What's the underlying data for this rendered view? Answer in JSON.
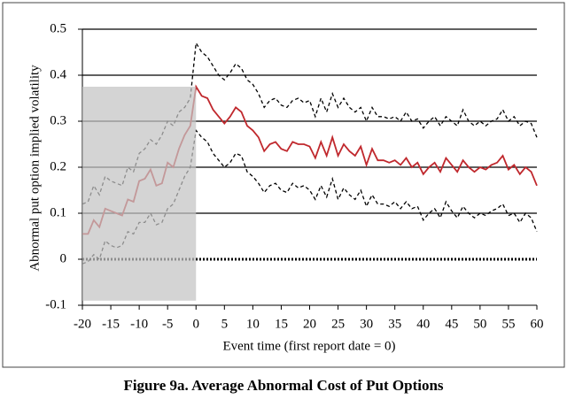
{
  "chart_data": {
    "type": "line",
    "caption": "Figure 9a. Average Abnormal Cost of Put Options",
    "xlabel": "Event time (first report date = 0)",
    "ylabel": "Abnormal put option implied volatility",
    "x": [
      -20,
      -19,
      -18,
      -17,
      -16,
      -15,
      -14,
      -13,
      -12,
      -11,
      -10,
      -9,
      -8,
      -7,
      -6,
      -5,
      -4,
      -3,
      -2,
      -1,
      0,
      1,
      2,
      3,
      4,
      5,
      6,
      7,
      8,
      9,
      10,
      11,
      12,
      13,
      14,
      15,
      16,
      17,
      18,
      19,
      20,
      21,
      22,
      23,
      24,
      25,
      26,
      27,
      28,
      29,
      30,
      31,
      32,
      33,
      34,
      35,
      36,
      37,
      38,
      39,
      40,
      41,
      42,
      43,
      44,
      45,
      46,
      47,
      48,
      49,
      50,
      51,
      52,
      53,
      54,
      55,
      56,
      57,
      58,
      59,
      60
    ],
    "series": [
      {
        "color": "#c0282d",
        "style": "solid",
        "values": [
          0.055,
          0.055,
          0.085,
          0.07,
          0.11,
          0.105,
          0.1,
          0.095,
          0.13,
          0.125,
          0.17,
          0.175,
          0.195,
          0.16,
          0.165,
          0.21,
          0.2,
          0.24,
          0.27,
          0.29,
          0.375,
          0.355,
          0.35,
          0.325,
          0.31,
          0.295,
          0.31,
          0.33,
          0.32,
          0.29,
          0.28,
          0.265,
          0.235,
          0.25,
          0.255,
          0.24,
          0.235,
          0.255,
          0.25,
          0.25,
          0.245,
          0.22,
          0.255,
          0.225,
          0.265,
          0.225,
          0.25,
          0.235,
          0.225,
          0.245,
          0.205,
          0.24,
          0.215,
          0.215,
          0.21,
          0.215,
          0.205,
          0.22,
          0.2,
          0.21,
          0.185,
          0.2,
          0.21,
          0.19,
          0.22,
          0.205,
          0.19,
          0.215,
          0.2,
          0.19,
          0.2,
          0.195,
          0.205,
          0.21,
          0.225,
          0.195,
          0.205,
          0.185,
          0.2,
          0.19,
          0.16
        ]
      },
      {
        "color": "#000000",
        "style": "dashed",
        "values": [
          0.12,
          0.125,
          0.16,
          0.14,
          0.18,
          0.17,
          0.165,
          0.16,
          0.2,
          0.19,
          0.23,
          0.24,
          0.26,
          0.25,
          0.27,
          0.3,
          0.29,
          0.32,
          0.33,
          0.35,
          0.47,
          0.45,
          0.44,
          0.42,
          0.4,
          0.39,
          0.405,
          0.425,
          0.415,
          0.39,
          0.38,
          0.36,
          0.33,
          0.345,
          0.35,
          0.335,
          0.33,
          0.345,
          0.35,
          0.34,
          0.345,
          0.31,
          0.35,
          0.32,
          0.36,
          0.33,
          0.35,
          0.33,
          0.32,
          0.33,
          0.3,
          0.33,
          0.31,
          0.31,
          0.305,
          0.31,
          0.3,
          0.32,
          0.3,
          0.305,
          0.285,
          0.3,
          0.31,
          0.29,
          0.31,
          0.3,
          0.29,
          0.325,
          0.3,
          0.29,
          0.3,
          0.29,
          0.3,
          0.305,
          0.325,
          0.3,
          0.31,
          0.29,
          0.3,
          0.295,
          0.265
        ]
      },
      {
        "color": "#000000",
        "style": "dashed",
        "values": [
          -0.01,
          -0.005,
          0.01,
          0.0,
          0.04,
          0.03,
          0.025,
          0.03,
          0.06,
          0.055,
          0.08,
          0.08,
          0.1,
          0.075,
          0.08,
          0.11,
          0.12,
          0.15,
          0.18,
          0.2,
          0.28,
          0.265,
          0.255,
          0.23,
          0.215,
          0.2,
          0.21,
          0.23,
          0.225,
          0.19,
          0.18,
          0.165,
          0.145,
          0.16,
          0.165,
          0.15,
          0.145,
          0.165,
          0.155,
          0.16,
          0.15,
          0.13,
          0.16,
          0.135,
          0.175,
          0.13,
          0.155,
          0.14,
          0.13,
          0.15,
          0.115,
          0.14,
          0.12,
          0.12,
          0.115,
          0.125,
          0.11,
          0.125,
          0.11,
          0.115,
          0.085,
          0.1,
          0.11,
          0.09,
          0.125,
          0.105,
          0.09,
          0.115,
          0.1,
          0.09,
          0.1,
          0.095,
          0.105,
          0.11,
          0.12,
          0.095,
          0.1,
          0.08,
          0.1,
          0.09,
          0.06
        ]
      }
    ],
    "shaded_region": {
      "x": [
        -20,
        0
      ],
      "y": [
        -0.09,
        0.375
      ],
      "color": "#c4c4c4"
    },
    "xlim": [
      -20,
      60
    ],
    "xticks": [
      -20,
      -15,
      -10,
      -5,
      0,
      5,
      10,
      15,
      20,
      25,
      30,
      35,
      40,
      45,
      50,
      55,
      60
    ],
    "ylim": [
      -0.1,
      0.5
    ],
    "yticks": [
      0.5,
      0.4,
      0.3,
      0.2,
      0.1,
      0,
      -0.1
    ],
    "grid": true
  }
}
